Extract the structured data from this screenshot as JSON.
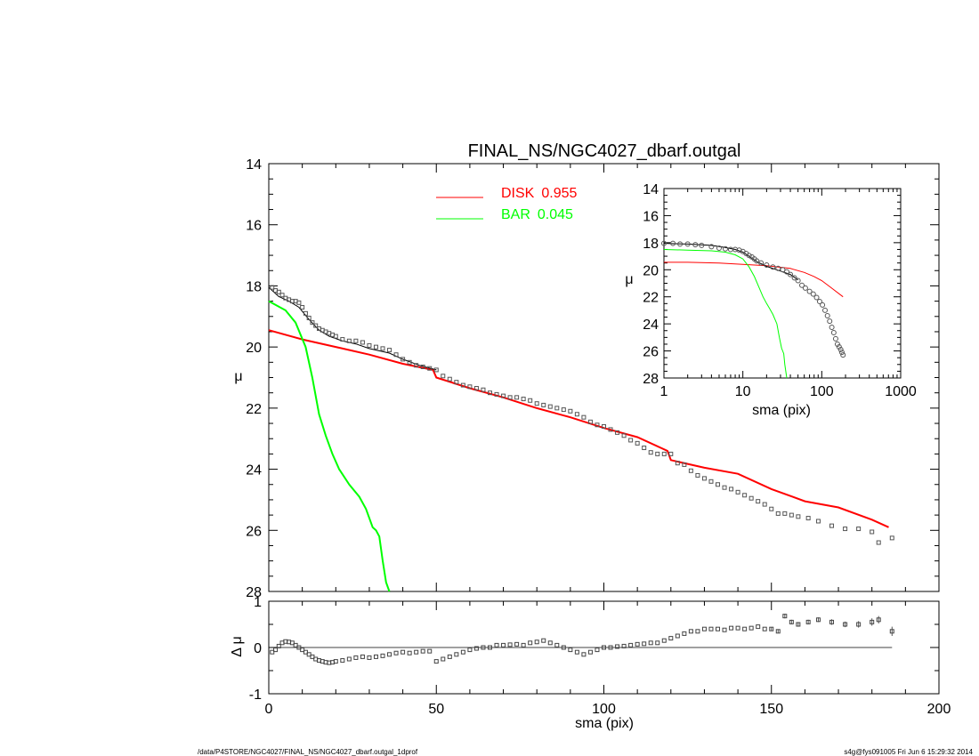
{
  "chart_data": [
    {
      "id": "main",
      "type": "line",
      "title": "FINAL_NS/NGC4027_dbarf.outgal",
      "xlabel": "",
      "ylabel": "μ",
      "xlim": [
        0,
        200
      ],
      "ylim": [
        28,
        14
      ],
      "y_inverted": true,
      "xticks": [
        0,
        50,
        100,
        150,
        200
      ],
      "yticks": [
        14,
        16,
        18,
        20,
        22,
        24,
        26,
        28
      ],
      "legend": {
        "placement": "top-center",
        "entries": [
          {
            "label": "DISK",
            "value": "0.955",
            "color": "#ff0000"
          },
          {
            "label": "BAR",
            "value": "0.045",
            "color": "#00ff00"
          }
        ]
      },
      "series": [
        {
          "name": "DISK",
          "color": "#ff0000",
          "x": [
            0,
            10,
            20,
            30,
            40,
            49,
            50,
            60,
            70,
            80,
            90,
            100,
            110,
            119,
            120,
            130,
            140,
            150,
            160,
            170,
            180,
            185
          ],
          "y": [
            19.45,
            19.75,
            20.0,
            20.25,
            20.55,
            20.75,
            21.0,
            21.35,
            21.65,
            22.0,
            22.3,
            22.65,
            22.95,
            23.4,
            23.7,
            23.95,
            24.15,
            24.65,
            25.05,
            25.25,
            25.65,
            25.9
          ]
        },
        {
          "name": "BAR",
          "color": "#00ff00",
          "x": [
            0,
            5,
            8,
            11,
            13,
            15,
            17,
            19,
            21,
            24,
            27,
            29,
            31,
            32,
            33,
            34,
            35,
            36
          ],
          "y": [
            18.5,
            18.8,
            19.2,
            20.0,
            21.0,
            22.2,
            22.9,
            23.5,
            24.0,
            24.5,
            24.9,
            25.3,
            25.9,
            26.0,
            26.2,
            27.0,
            27.7,
            28.0
          ]
        },
        {
          "name": "",
          "color": "#000000",
          "x": [
            0,
            3,
            6,
            9,
            12,
            15,
            18,
            22,
            26,
            30,
            36,
            40,
            45,
            50
          ],
          "y": [
            18.05,
            18.35,
            18.5,
            18.7,
            19.1,
            19.45,
            19.65,
            19.8,
            19.9,
            20.05,
            20.2,
            20.4,
            20.6,
            20.75
          ]
        },
        {
          "name": "",
          "type": "scatter",
          "color": "#555555",
          "x": [
            1,
            2,
            3,
            4,
            5,
            6,
            7,
            8,
            9,
            10,
            11,
            12,
            13,
            14,
            15,
            16,
            17,
            18,
            19,
            20,
            22,
            24,
            26,
            28,
            30,
            32,
            34,
            36,
            38,
            40,
            42,
            44,
            46,
            48,
            50,
            52,
            54,
            56,
            58,
            60,
            62,
            64,
            66,
            68,
            70,
            72,
            74,
            76,
            78,
            80,
            82,
            84,
            86,
            88,
            90,
            92,
            94,
            96,
            98,
            100,
            102,
            104,
            106,
            108,
            110,
            112,
            114,
            116,
            118,
            120,
            122,
            124,
            126,
            128,
            130,
            132,
            134,
            136,
            138,
            140,
            142,
            144,
            146,
            148,
            150,
            152,
            154,
            156,
            158,
            161,
            164,
            168,
            172,
            176,
            180,
            182,
            186
          ],
          "y": [
            18.05,
            18.15,
            18.2,
            18.3,
            18.4,
            18.45,
            18.5,
            18.5,
            18.55,
            18.7,
            18.9,
            19.05,
            19.2,
            19.3,
            19.4,
            19.45,
            19.5,
            19.55,
            19.6,
            19.65,
            19.75,
            19.8,
            19.8,
            19.85,
            19.95,
            20.0,
            20.05,
            20.1,
            20.25,
            20.4,
            20.5,
            20.6,
            20.65,
            20.7,
            20.75,
            20.95,
            21.05,
            21.15,
            21.25,
            21.3,
            21.35,
            21.4,
            21.5,
            21.55,
            21.6,
            21.65,
            21.65,
            21.7,
            21.75,
            21.85,
            21.9,
            21.95,
            22.0,
            22.05,
            22.1,
            22.2,
            22.3,
            22.45,
            22.55,
            22.6,
            22.7,
            22.8,
            22.9,
            23.05,
            23.15,
            23.3,
            23.45,
            23.5,
            23.5,
            23.5,
            23.8,
            23.85,
            24.05,
            24.2,
            24.3,
            24.4,
            24.5,
            24.6,
            24.65,
            24.75,
            24.85,
            24.95,
            25.05,
            25.15,
            25.3,
            25.45,
            25.45,
            25.5,
            25.55,
            25.6,
            25.7,
            25.85,
            25.95,
            25.95,
            26.05,
            26.4,
            26.25
          ]
        }
      ]
    },
    {
      "id": "residual",
      "type": "scatter",
      "xlabel": "sma (pix)",
      "ylabel": "Δ μ",
      "xlim": [
        0,
        200
      ],
      "ylim": [
        -1,
        1
      ],
      "xticks": [
        0,
        50,
        100,
        150,
        200
      ],
      "yticks": [
        -1,
        0,
        1
      ],
      "reference_line": 0,
      "x": [
        1,
        2,
        3,
        4,
        5,
        6,
        7,
        8,
        9,
        10,
        11,
        12,
        13,
        14,
        15,
        16,
        17,
        18,
        19,
        20,
        22,
        24,
        26,
        28,
        30,
        32,
        34,
        36,
        38,
        40,
        42,
        44,
        46,
        48,
        50,
        52,
        54,
        56,
        58,
        60,
        62,
        64,
        66,
        68,
        70,
        72,
        74,
        76,
        78,
        80,
        82,
        84,
        86,
        88,
        90,
        92,
        94,
        96,
        98,
        100,
        102,
        104,
        106,
        108,
        110,
        112,
        114,
        116,
        118,
        120,
        122,
        124,
        126,
        128,
        130,
        132,
        134,
        136,
        138,
        140,
        142,
        144,
        146,
        148,
        150,
        152,
        154,
        156,
        158,
        161,
        164,
        168,
        172,
        176,
        180,
        182,
        186
      ],
      "y": [
        -0.1,
        -0.05,
        0.03,
        0.1,
        0.13,
        0.12,
        0.1,
        0.05,
        0.0,
        -0.05,
        -0.1,
        -0.15,
        -0.2,
        -0.25,
        -0.28,
        -0.3,
        -0.32,
        -0.33,
        -0.32,
        -0.3,
        -0.28,
        -0.25,
        -0.22,
        -0.2,
        -0.22,
        -0.2,
        -0.18,
        -0.15,
        -0.12,
        -0.1,
        -0.12,
        -0.1,
        -0.08,
        -0.08,
        -0.3,
        -0.25,
        -0.2,
        -0.15,
        -0.1,
        -0.05,
        -0.02,
        0.0,
        0.0,
        0.05,
        0.05,
        0.06,
        0.07,
        0.05,
        0.1,
        0.12,
        0.15,
        0.1,
        0.05,
        0.0,
        -0.05,
        -0.1,
        -0.15,
        -0.1,
        -0.05,
        0.0,
        0.0,
        0.02,
        0.03,
        0.05,
        0.07,
        0.08,
        0.1,
        0.1,
        0.15,
        0.2,
        0.25,
        0.3,
        0.35,
        0.35,
        0.4,
        0.4,
        0.4,
        0.38,
        0.42,
        0.42,
        0.4,
        0.42,
        0.45,
        0.4,
        0.4,
        0.35,
        0.68,
        0.55,
        0.5,
        0.55,
        0.6,
        0.55,
        0.5,
        0.5,
        0.55,
        0.6,
        0.35
      ],
      "error": [
        0.02,
        0.02,
        0.02,
        0.02,
        0.02,
        0.02,
        0.02,
        0.02,
        0.02,
        0.02,
        0.02,
        0.02,
        0.02,
        0.02,
        0.02,
        0.02,
        0.02,
        0.02,
        0.02,
        0.02,
        0.02,
        0.02,
        0.02,
        0.02,
        0.02,
        0.02,
        0.02,
        0.02,
        0.02,
        0.02,
        0.02,
        0.02,
        0.02,
        0.02,
        0.02,
        0.02,
        0.02,
        0.02,
        0.02,
        0.02,
        0.02,
        0.02,
        0.02,
        0.02,
        0.02,
        0.02,
        0.02,
        0.02,
        0.02,
        0.02,
        0.02,
        0.02,
        0.02,
        0.02,
        0.02,
        0.02,
        0.02,
        0.02,
        0.02,
        0.02,
        0.02,
        0.02,
        0.02,
        0.02,
        0.02,
        0.02,
        0.02,
        0.02,
        0.02,
        0.02,
        0.03,
        0.03,
        0.03,
        0.03,
        0.03,
        0.03,
        0.03,
        0.03,
        0.03,
        0.03,
        0.03,
        0.03,
        0.03,
        0.03,
        0.04,
        0.04,
        0.05,
        0.05,
        0.05,
        0.05,
        0.05,
        0.06,
        0.06,
        0.07,
        0.08,
        0.08,
        0.1
      ]
    },
    {
      "id": "inset",
      "type": "line",
      "xlabel": "sma (pix)",
      "ylabel": "μ",
      "x_scale": "log",
      "xlim": [
        1,
        1000
      ],
      "ylim": [
        28,
        14
      ],
      "y_inverted": true,
      "xticks": [
        1,
        10,
        100,
        1000
      ],
      "yticks": [
        14,
        16,
        18,
        20,
        22,
        24,
        26,
        28
      ],
      "series": [
        {
          "name": "DISK",
          "color": "#ff0000",
          "x": [
            1,
            2,
            5,
            10,
            20,
            40,
            60,
            80,
            100,
            130,
            186
          ],
          "y": [
            19.45,
            19.45,
            19.5,
            19.6,
            19.7,
            19.9,
            20.2,
            20.5,
            20.8,
            21.3,
            22.0
          ]
        },
        {
          "name": "BAR",
          "color": "#00ff00",
          "x": [
            1,
            2,
            4,
            6,
            8,
            10,
            12,
            14,
            16,
            18,
            20,
            22,
            24,
            27,
            29,
            31,
            33,
            34,
            36
          ],
          "y": [
            18.5,
            18.55,
            18.6,
            18.7,
            18.9,
            19.2,
            19.8,
            20.5,
            21.3,
            22.0,
            22.5,
            22.9,
            23.3,
            24.0,
            25.0,
            25.8,
            26.2,
            27.0,
            28.0
          ]
        },
        {
          "name": "",
          "color": "#000000",
          "x": [
            1,
            2,
            4,
            6,
            8,
            10,
            15,
            20,
            30,
            40,
            50
          ],
          "y": [
            18.05,
            18.1,
            18.2,
            18.35,
            18.5,
            18.7,
            19.4,
            19.75,
            20.1,
            20.35,
            20.75
          ]
        },
        {
          "name": "",
          "type": "scatter",
          "color": "#555555",
          "x": [
            1,
            1.3,
            1.6,
            2,
            2.5,
            3,
            4,
            5,
            6,
            7,
            8,
            9,
            10,
            11,
            12,
            13,
            14,
            15,
            17,
            20,
            24,
            28,
            32,
            36,
            40,
            45,
            50,
            56,
            62,
            70,
            78,
            86,
            94,
            102,
            110,
            118,
            126,
            134,
            142,
            150,
            158,
            166,
            174,
            180,
            186
          ],
          "y": [
            18.05,
            18.05,
            18.1,
            18.1,
            18.15,
            18.2,
            18.3,
            18.4,
            18.45,
            18.5,
            18.5,
            18.55,
            18.65,
            18.8,
            18.95,
            19.05,
            19.2,
            19.35,
            19.5,
            19.65,
            19.8,
            19.9,
            20.0,
            20.15,
            20.35,
            20.6,
            20.8,
            21.15,
            21.35,
            21.6,
            21.8,
            22.05,
            22.35,
            22.6,
            23.0,
            23.4,
            23.8,
            24.25,
            24.65,
            25.1,
            25.5,
            25.7,
            25.9,
            26.1,
            26.3
          ]
        }
      ]
    }
  ],
  "footer": {
    "left": "/data/P4STORE/NGC4027/FINAL_NS/NGC4027_dbarf.outgal_1dprof",
    "right": "s4g@fys091005  Fri Jun  6 15:29:32 2014"
  }
}
